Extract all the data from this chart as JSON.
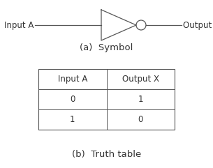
{
  "background_color": "#ffffff",
  "title_a": "(a)  Symbol",
  "title_b": "(b)  Truth table",
  "label_input": "Input A",
  "label_output": "Output X",
  "table_headers": [
    "Input A",
    "Output X"
  ],
  "table_rows": [
    [
      "0",
      "1"
    ],
    [
      "1",
      "0"
    ]
  ],
  "line_color": "#555555",
  "text_color": "#333333",
  "font_size": 8.5,
  "title_font_size": 9.5,
  "fig_width": 3.05,
  "fig_height": 2.41,
  "dpi": 100
}
